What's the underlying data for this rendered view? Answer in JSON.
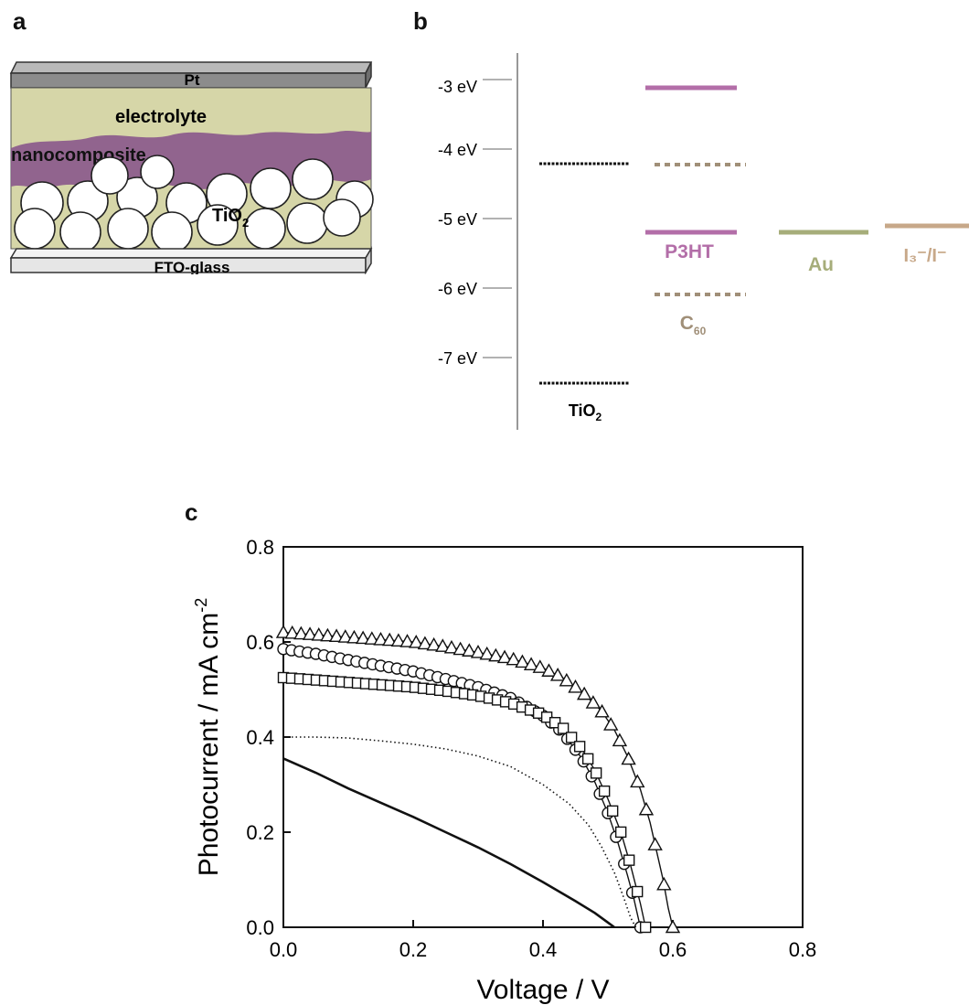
{
  "panels": {
    "a": {
      "letter": "a",
      "labels": {
        "top_electrode": "Pt",
        "electrolyte": "electrolyte",
        "nanocomposite": "nanocomposite",
        "tio2_main": "TiO",
        "tio2_sub": "2",
        "substrate": "FTO-glass"
      },
      "colors": {
        "electrolyte": "#d6d6a8",
        "nanocomposite": "#8b5a8c",
        "pt": "#8a8a8a",
        "glass": "#e8e8e8"
      }
    },
    "b": {
      "letter": "b",
      "axis_ticks": [
        "-3 eV",
        "-4 eV",
        "-5 eV",
        "-6 eV",
        "-7 eV"
      ],
      "materials": {
        "tio2": {
          "main": "TiO",
          "sub": "2",
          "lumo": -4.2,
          "homo": -7.4,
          "color": "#111111"
        },
        "p3ht": {
          "label": "P3HT",
          "lumo": -3.1,
          "homo": -5.2,
          "color": "#b36ea8"
        },
        "c60": {
          "main": "C",
          "sub": "60",
          "lumo": -4.2,
          "homo": -6.1,
          "color": "#a08f78"
        },
        "au": {
          "label": "Au",
          "level": -5.2,
          "color": "#a6ad7a"
        },
        "redox": {
          "label": "I₃⁻/I⁻",
          "level": -5.1,
          "color": "#c7a889"
        }
      }
    },
    "c": {
      "letter": "c"
    }
  },
  "chart_data": {
    "type": "line",
    "xlabel": "Voltage / V",
    "ylabel_main": "Photocurrent / mA cm",
    "ylabel_sup": "-2",
    "xlim": [
      0.0,
      0.8
    ],
    "ylim": [
      0.0,
      0.8
    ],
    "xticks": [
      "0.0",
      "0.2",
      "0.4",
      "0.6",
      "0.8"
    ],
    "yticks": [
      "0.0",
      "0.2",
      "0.4",
      "0.6",
      "0.8"
    ],
    "series": [
      {
        "marker": "triangle",
        "style": "solid",
        "x": [
          0.0,
          0.05,
          0.1,
          0.15,
          0.2,
          0.25,
          0.3,
          0.35,
          0.4,
          0.43,
          0.46,
          0.49,
          0.51,
          0.53,
          0.55,
          0.565,
          0.575,
          0.585,
          0.593,
          0.6
        ],
        "y": [
          0.62,
          0.615,
          0.61,
          0.605,
          0.6,
          0.59,
          0.578,
          0.565,
          0.545,
          0.525,
          0.495,
          0.455,
          0.415,
          0.36,
          0.29,
          0.22,
          0.16,
          0.1,
          0.04,
          0.0
        ]
      },
      {
        "marker": "circle",
        "style": "solid",
        "x": [
          0.0,
          0.05,
          0.1,
          0.15,
          0.2,
          0.25,
          0.3,
          0.35,
          0.4,
          0.43,
          0.46,
          0.48,
          0.5,
          0.515,
          0.53,
          0.54,
          0.55
        ],
        "y": [
          0.585,
          0.575,
          0.562,
          0.55,
          0.538,
          0.522,
          0.505,
          0.482,
          0.445,
          0.41,
          0.355,
          0.305,
          0.24,
          0.18,
          0.11,
          0.06,
          0.0
        ]
      },
      {
        "marker": "square",
        "style": "solid",
        "x": [
          0.0,
          0.05,
          0.1,
          0.15,
          0.2,
          0.25,
          0.3,
          0.35,
          0.4,
          0.43,
          0.46,
          0.48,
          0.5,
          0.52,
          0.535,
          0.55,
          0.558
        ],
        "y": [
          0.525,
          0.52,
          0.515,
          0.51,
          0.505,
          0.497,
          0.487,
          0.472,
          0.447,
          0.42,
          0.375,
          0.33,
          0.27,
          0.2,
          0.13,
          0.05,
          0.0
        ]
      },
      {
        "marker": "none",
        "style": "dotted",
        "x": [
          0.0,
          0.05,
          0.1,
          0.15,
          0.2,
          0.25,
          0.3,
          0.35,
          0.4,
          0.44,
          0.47,
          0.49,
          0.51,
          0.525,
          0.535,
          0.543
        ],
        "y": [
          0.4,
          0.4,
          0.398,
          0.392,
          0.385,
          0.375,
          0.36,
          0.338,
          0.3,
          0.26,
          0.215,
          0.17,
          0.115,
          0.06,
          0.02,
          0.0
        ]
      },
      {
        "marker": "none",
        "style": "solid-thick",
        "x": [
          0.0,
          0.05,
          0.1,
          0.15,
          0.2,
          0.25,
          0.3,
          0.35,
          0.4,
          0.45,
          0.48,
          0.5,
          0.51
        ],
        "y": [
          0.355,
          0.325,
          0.292,
          0.262,
          0.232,
          0.2,
          0.168,
          0.133,
          0.095,
          0.055,
          0.03,
          0.01,
          0.0
        ]
      }
    ]
  }
}
